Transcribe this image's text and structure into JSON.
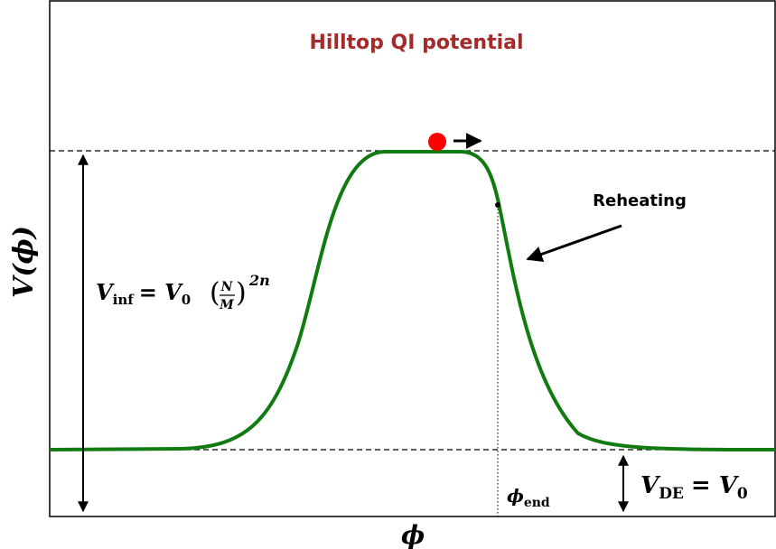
{
  "title": "Hilltop QI potential",
  "x_label": "ϕ",
  "y_label": {
    "symbol": "V",
    "argument": "(ϕ)"
  },
  "annotations": {
    "v_inf": {
      "symbol": "V",
      "subscript": "inf",
      "equals": "= V",
      "zero": "0",
      "numerator": "N",
      "denominator": "M",
      "exponent": "2n"
    },
    "reheating": "Reheating",
    "phi_end": {
      "symbol": "ϕ",
      "subscript": "end"
    },
    "v_de": {
      "symbol": "V",
      "subscript": "DE",
      "equals": "= V",
      "zero": "0"
    }
  }
}
